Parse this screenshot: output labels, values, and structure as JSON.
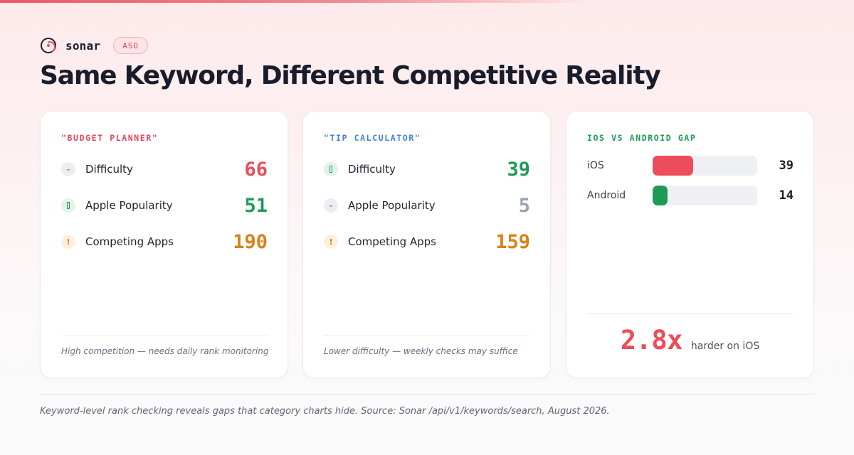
{
  "brand": {
    "name": "sonar",
    "badge": "ASO",
    "logo_icon": "sonar-logo-icon"
  },
  "title": "Same Keyword, Different Competitive Reality",
  "colors": {
    "red": "#ec4c5b",
    "green": "#1e9a55",
    "amber": "#d98218",
    "gray": "#9aa1b0",
    "blue": "#3d82d6"
  },
  "cards": [
    {
      "label": "\"BUDGET PLANNER\"",
      "metrics": [
        {
          "icon": "minus-icon",
          "label": "Difficulty",
          "value": "66"
        },
        {
          "icon": "bar-icon",
          "label": "Apple Popularity",
          "value": "51"
        },
        {
          "icon": "exclamation-icon",
          "label": "Competing Apps",
          "value": "190"
        }
      ],
      "note": "High competition — needs daily rank monitoring"
    },
    {
      "label": "\"TIP CALCULATOR\"",
      "metrics": [
        {
          "icon": "bar-icon",
          "label": "Difficulty",
          "value": "39"
        },
        {
          "icon": "minus-icon",
          "label": "Apple Popularity",
          "value": "5"
        },
        {
          "icon": "exclamation-icon",
          "label": "Competing Apps",
          "value": "159"
        }
      ],
      "note": "Lower difficulty — weekly checks may suffice"
    }
  ],
  "gap": {
    "label": "IOS VS ANDROID GAP",
    "scale_max": 100,
    "rows": [
      {
        "name": "iOS",
        "value": 39
      },
      {
        "name": "Android",
        "value": 14
      }
    ],
    "ratio": "2.8x",
    "ratio_text": "harder on iOS"
  },
  "footnote": "Keyword-level rank checking reveals gaps that category charts hide. Source: Sonar /api/v1/keywords/search, August 2026."
}
